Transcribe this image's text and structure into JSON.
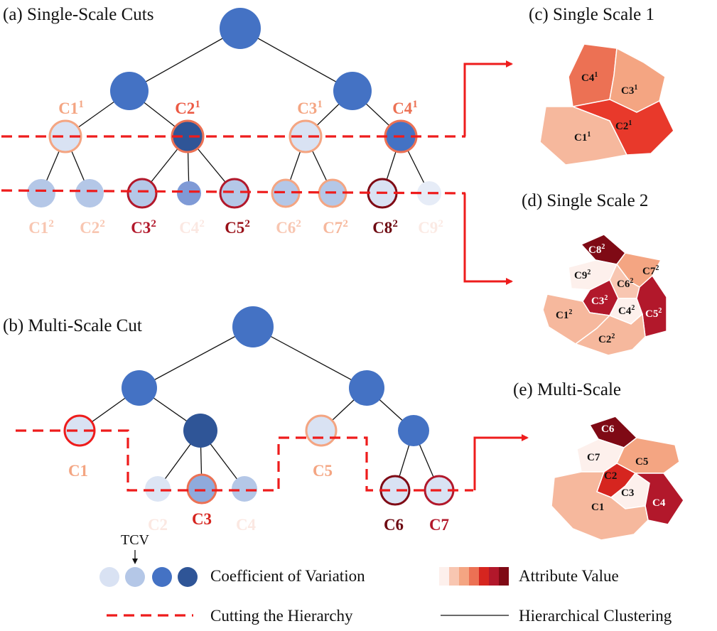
{
  "panels": {
    "a": "(a) Single-Scale Cuts",
    "b": "(b) Multi-Scale Cut",
    "c": "(c) Single Scale 1",
    "d": "(d) Single Scale 2",
    "e": "(e) Multi-Scale"
  },
  "colors": {
    "cv": [
      "#d9e2f3",
      "#b4c7e7",
      "#4472c4",
      "#2f5597"
    ],
    "attr": [
      "#fdf0ec",
      "#f8c6b1",
      "#f4a582",
      "#ec7154",
      "#d6251f",
      "#b2182b",
      "#7f0a15"
    ],
    "cut": "#ee1c1c",
    "tree": "#4472c4"
  },
  "scale1_labels": {
    "C1": {
      "base": "C1",
      "sup": "1"
    },
    "C2": {
      "base": "C2",
      "sup": "1"
    },
    "C3": {
      "base": "C3",
      "sup": "1"
    },
    "C4": {
      "base": "C4",
      "sup": "1"
    }
  },
  "scale2_labels": {
    "C1": {
      "base": "C1",
      "sup": "2"
    },
    "C2": {
      "base": "C2",
      "sup": "2"
    },
    "C3": {
      "base": "C3",
      "sup": "2"
    },
    "C4": {
      "base": "C4",
      "sup": "2"
    },
    "C5": {
      "base": "C5",
      "sup": "2"
    },
    "C6": {
      "base": "C6",
      "sup": "2"
    },
    "C7": {
      "base": "C7",
      "sup": "2"
    },
    "C8": {
      "base": "C8",
      "sup": "2"
    },
    "C9": {
      "base": "C9",
      "sup": "2"
    }
  },
  "multi_labels": {
    "C1": "C1",
    "C2": "C2",
    "C3": "C3",
    "C4": "C4",
    "C5": "C5",
    "C6": "C6",
    "C7": "C7"
  },
  "legend": {
    "tcv": "TCV",
    "cv": "Coefficient of Variation",
    "attr": "Attribute Value",
    "cut": "Cutting the Hierarchy",
    "hier": "Hierarchical Clustering"
  }
}
